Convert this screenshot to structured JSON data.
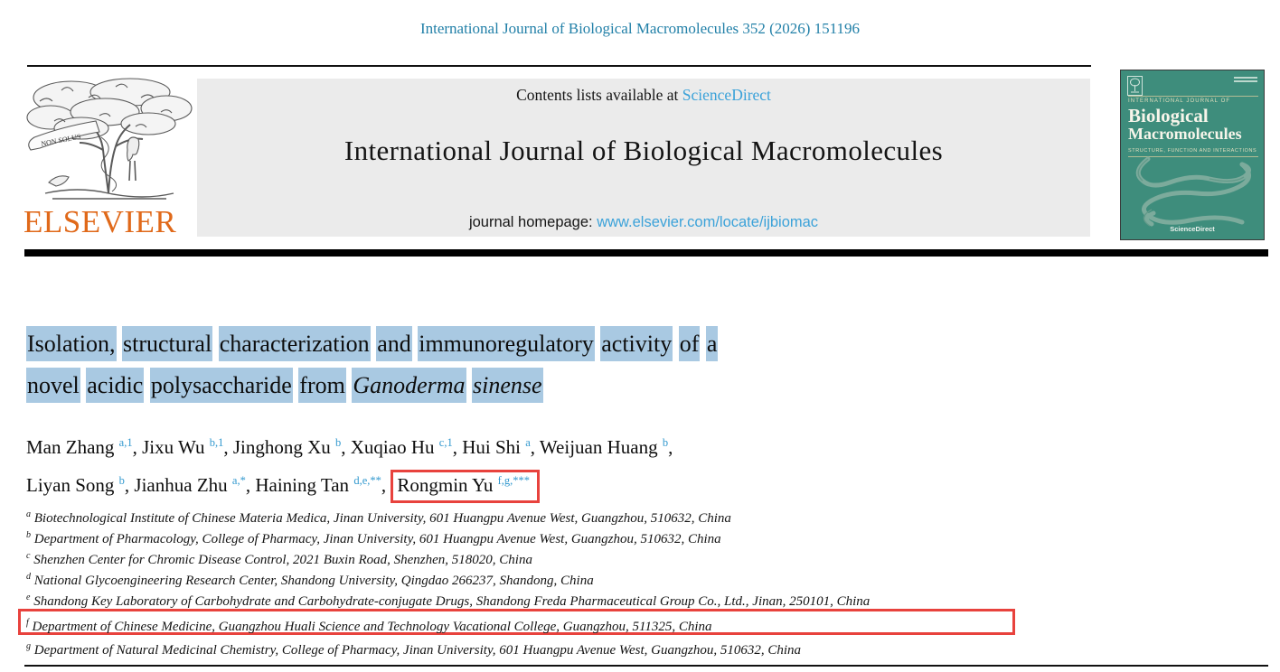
{
  "page": {
    "citation": "International Journal of Biological Macromolecules 352 (2026) 151196"
  },
  "masthead": {
    "contents_prefix": "Contents lists available at ",
    "sciencedirect_link": "ScienceDirect",
    "journal_title": "International Journal of Biological Macromolecules",
    "homepage_prefix": "journal homepage: ",
    "homepage_url": "www.elsevier.com/locate/ijbiomac",
    "publisher_wordmark": "ELSEVIER",
    "logo_motto": "NON SOLUS"
  },
  "cover": {
    "kicker": "INTERNATIONAL JOURNAL OF",
    "title_line1": "Biological",
    "title_line2": "Macromolecules",
    "subtitle": "STRUCTURE, FUNCTION AND INTERACTIONS",
    "footer": "ScienceDirect"
  },
  "article": {
    "title": {
      "line1": "Isolation, structural characterization and immunoregulatory activity of a",
      "line2_plain": "novel acidic polysaccharide from",
      "line2_italic": "Ganoderma sinense"
    },
    "authors": [
      {
        "name": "Man Zhang",
        "sup": "a,1"
      },
      {
        "name": "Jixu Wu",
        "sup": "b,1"
      },
      {
        "name": "Jinghong Xu",
        "sup": "b"
      },
      {
        "name": "Xuqiao Hu",
        "sup": "c,1"
      },
      {
        "name": "Hui Shi",
        "sup": "a"
      },
      {
        "name": "Weijuan Huang",
        "sup": "b",
        "break_after": true
      },
      {
        "name": "Liyan Song",
        "sup": "b"
      },
      {
        "name": "Jianhua Zhu",
        "sup": "a,*"
      },
      {
        "name": "Haining Tan",
        "sup": "d,e,**"
      },
      {
        "name": "Rongmin Yu",
        "sup": "f,g,***",
        "boxed": true
      }
    ],
    "affiliations": [
      {
        "label": "a",
        "text": "Biotechnological Institute of Chinese Materia Medica, Jinan University, 601 Huangpu Avenue West, Guangzhou, 510632, China"
      },
      {
        "label": "b",
        "text": "Department of Pharmacology, College of Pharmacy, Jinan University, 601 Huangpu Avenue West, Guangzhou, 510632, China"
      },
      {
        "label": "c",
        "text": "Shenzhen Center for Chromic Disease Control, 2021 Buxin Road, Shenzhen, 518020, China"
      },
      {
        "label": "d",
        "text": "National Glycoengineering Research Center, Shandong University, Qingdao 266237, Shandong, China"
      },
      {
        "label": "e",
        "text": "Shandong Key Laboratory of Carbohydrate and Carbohydrate-conjugate Drugs, Shandong Freda Pharmaceutical Group Co., Ltd., Jinan, 250101, China"
      },
      {
        "label": "f",
        "text": "Department of Chinese Medicine, Guangzhou Huali Science and Technology Vacational College, Guangzhou, 511325, China",
        "boxed": true
      },
      {
        "label": "g",
        "text": "Department of Natural Medicinal Chemistry, College of Pharmacy, Jinan University, 601 Huangpu Avenue West, Guangzhou, 510632, China"
      }
    ]
  },
  "colors": {
    "citation_teal": "#2280a8",
    "link_blue": "#3ba2d9",
    "superscript_blue": "#3399cf",
    "highlight_blue": "#a9c9e2",
    "annotation_red": "#e8423d",
    "masthead_gray": "#ebebeb",
    "cover_green": "#3e8d7c",
    "elsevier_orange": "#e0691a"
  }
}
